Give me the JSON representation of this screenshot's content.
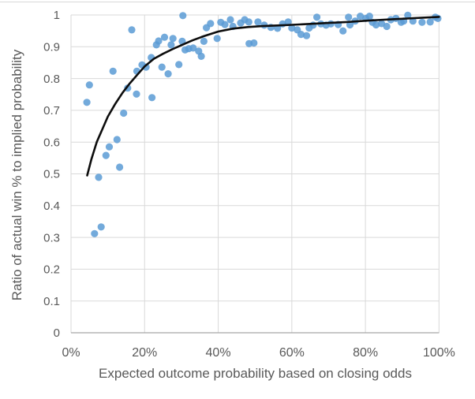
{
  "chart_data": {
    "type": "scatter",
    "title": "",
    "xlabel": "Expected outcome probability based on closing odds",
    "ylabel": "Ratio of actual win % to implied probability",
    "xlim": [
      0,
      100
    ],
    "ylim": [
      0,
      1
    ],
    "grid": true,
    "legend_position": "none",
    "x_ticks": [
      {
        "value": 0,
        "label": "0%"
      },
      {
        "value": 20,
        "label": "20%"
      },
      {
        "value": 40,
        "label": "40%"
      },
      {
        "value": 60,
        "label": "60%"
      },
      {
        "value": 80,
        "label": "80%"
      },
      {
        "value": 100,
        "label": "100%"
      }
    ],
    "y_ticks": [
      {
        "value": 0,
        "label": "0"
      },
      {
        "value": 0.1,
        "label": "0.1"
      },
      {
        "value": 0.2,
        "label": "0.2"
      },
      {
        "value": 0.3,
        "label": "0.3"
      },
      {
        "value": 0.4,
        "label": "0.4"
      },
      {
        "value": 0.5,
        "label": "0.5"
      },
      {
        "value": 0.6,
        "label": "0.6"
      },
      {
        "value": 0.7,
        "label": "0.7"
      },
      {
        "value": 0.8,
        "label": "0.8"
      },
      {
        "value": 0.9,
        "label": "0.9"
      },
      {
        "value": 1,
        "label": "1"
      }
    ],
    "series": [
      {
        "name": "ratio-scatter",
        "type": "scatter",
        "color": "#5B9BD5",
        "marker_opacity": 0.85,
        "points": [
          [
            4.3,
            0.725
          ],
          [
            5.0,
            0.78
          ],
          [
            6.4,
            0.312
          ],
          [
            7.5,
            0.489
          ],
          [
            8.2,
            0.333
          ],
          [
            9.5,
            0.558
          ],
          [
            10.4,
            0.585
          ],
          [
            11.4,
            0.823
          ],
          [
            12.5,
            0.608
          ],
          [
            13.2,
            0.521
          ],
          [
            14.3,
            0.691
          ],
          [
            15.4,
            0.77
          ],
          [
            16.5,
            0.953
          ],
          [
            17.8,
            0.751
          ],
          [
            17.9,
            0.823
          ],
          [
            19.3,
            0.843
          ],
          [
            20.4,
            0.836
          ],
          [
            21.8,
            0.866
          ],
          [
            22.0,
            0.74
          ],
          [
            23.2,
            0.906
          ],
          [
            23.8,
            0.918
          ],
          [
            24.7,
            0.836
          ],
          [
            25.4,
            0.93
          ],
          [
            26.4,
            0.815
          ],
          [
            27.2,
            0.906
          ],
          [
            27.7,
            0.926
          ],
          [
            29.3,
            0.844
          ],
          [
            30.2,
            0.917
          ],
          [
            30.4,
            0.998
          ],
          [
            31.0,
            0.89
          ],
          [
            32.0,
            0.894
          ],
          [
            33.2,
            0.896
          ],
          [
            34.7,
            0.886
          ],
          [
            35.4,
            0.87
          ],
          [
            36.1,
            0.917
          ],
          [
            36.8,
            0.96
          ],
          [
            37.9,
            0.973
          ],
          [
            39.7,
            0.926
          ],
          [
            40.7,
            0.977
          ],
          [
            41.8,
            0.97
          ],
          [
            43.3,
            0.985
          ],
          [
            44.0,
            0.964
          ],
          [
            46.1,
            0.975
          ],
          [
            47.2,
            0.985
          ],
          [
            48.3,
            0.978
          ],
          [
            48.4,
            0.91
          ],
          [
            49.7,
            0.912
          ],
          [
            50.8,
            0.978
          ],
          [
            52.5,
            0.968
          ],
          [
            54.3,
            0.961
          ],
          [
            56.1,
            0.958
          ],
          [
            57.5,
            0.972
          ],
          [
            59.0,
            0.978
          ],
          [
            60.0,
            0.959
          ],
          [
            61.5,
            0.953
          ],
          [
            62.5,
            0.939
          ],
          [
            64.0,
            0.935
          ],
          [
            64.7,
            0.959
          ],
          [
            65.8,
            0.968
          ],
          [
            66.8,
            0.993
          ],
          [
            67.9,
            0.972
          ],
          [
            69.3,
            0.968
          ],
          [
            70.6,
            0.972
          ],
          [
            72.6,
            0.97
          ],
          [
            73.9,
            0.95
          ],
          [
            75.4,
            0.993
          ],
          [
            75.8,
            0.969
          ],
          [
            77.2,
            0.981
          ],
          [
            78.6,
            0.996
          ],
          [
            80.1,
            0.989
          ],
          [
            81.1,
            0.996
          ],
          [
            81.9,
            0.977
          ],
          [
            82.9,
            0.969
          ],
          [
            84.4,
            0.973
          ],
          [
            85.8,
            0.964
          ],
          [
            86.9,
            0.985
          ],
          [
            88.3,
            0.989
          ],
          [
            89.7,
            0.977
          ],
          [
            90.4,
            0.981
          ],
          [
            91.5,
            0.999
          ],
          [
            92.9,
            0.981
          ],
          [
            95.4,
            0.977
          ],
          [
            97.6,
            0.978
          ],
          [
            99.0,
            0.993
          ],
          [
            99.7,
            0.989
          ]
        ]
      },
      {
        "name": "trendline",
        "type": "line",
        "color": "#0d0d0d",
        "width": 2.6,
        "points": [
          [
            4.4,
            0.495
          ],
          [
            5.5,
            0.545
          ],
          [
            7.0,
            0.6
          ],
          [
            8.5,
            0.64
          ],
          [
            10.0,
            0.68
          ],
          [
            12.0,
            0.72
          ],
          [
            14.0,
            0.755
          ],
          [
            16.0,
            0.785
          ],
          [
            18.0,
            0.812
          ],
          [
            20.0,
            0.838
          ],
          [
            22.5,
            0.862
          ],
          [
            25.0,
            0.878
          ],
          [
            27.5,
            0.892
          ],
          [
            30.0,
            0.905
          ],
          [
            33.0,
            0.92
          ],
          [
            36.0,
            0.933
          ],
          [
            40.0,
            0.948
          ],
          [
            44.0,
            0.957
          ],
          [
            48.0,
            0.962
          ],
          [
            52.0,
            0.965
          ],
          [
            56.0,
            0.967
          ],
          [
            60.0,
            0.969
          ],
          [
            65.0,
            0.972
          ],
          [
            70.0,
            0.975
          ],
          [
            75.0,
            0.978
          ],
          [
            80.0,
            0.982
          ],
          [
            85.0,
            0.985
          ],
          [
            90.0,
            0.988
          ],
          [
            95.0,
            0.991
          ],
          [
            100.0,
            0.994
          ]
        ]
      }
    ],
    "colors": {
      "marker": "#5B9BD5",
      "trendline": "#0d0d0d",
      "gridline": "#d9d9d9",
      "bottom_axis": "#a6a6a6",
      "text": "#595959",
      "background": "#ffffff",
      "frame_border": "#d9d9d9"
    }
  }
}
